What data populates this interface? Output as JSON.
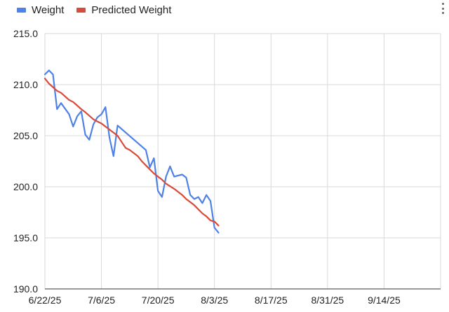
{
  "chart_data": {
    "type": "line",
    "title": "",
    "xlabel": "",
    "ylabel": "",
    "x_ticks": [
      "6/22/25",
      "7/6/25",
      "7/20/25",
      "8/3/25",
      "8/17/25",
      "8/31/25",
      "9/14/25"
    ],
    "y_ticks": [
      "190.0",
      "195.0",
      "200.0",
      "205.0",
      "210.0",
      "215.0"
    ],
    "xlim": [
      "6/22/25",
      "9/28/25"
    ],
    "ylim": [
      190,
      215
    ],
    "grid": true,
    "legend_position": "top-left",
    "series": [
      {
        "name": "Weight",
        "color": "#4f82e6",
        "points": [
          [
            "6/22/25",
            211.0
          ],
          [
            "6/23/25",
            211.4
          ],
          [
            "6/24/25",
            211.0
          ],
          [
            "6/25/25",
            207.6
          ],
          [
            "6/26/25",
            208.2
          ],
          [
            "6/28/25",
            207.1
          ],
          [
            "6/29/25",
            205.9
          ],
          [
            "6/30/25",
            206.9
          ],
          [
            "7/1/25",
            207.4
          ],
          [
            "7/2/25",
            205.1
          ],
          [
            "7/3/25",
            204.6
          ],
          [
            "7/4/25",
            206.1
          ],
          [
            "7/5/25",
            206.8
          ],
          [
            "7/6/25",
            207.1
          ],
          [
            "7/7/25",
            207.8
          ],
          [
            "7/8/25",
            204.8
          ],
          [
            "7/9/25",
            203.0
          ],
          [
            "7/10/25",
            206.0
          ],
          [
            "7/17/25",
            203.6
          ],
          [
            "7/18/25",
            201.9
          ],
          [
            "7/19/25",
            202.8
          ],
          [
            "7/20/25",
            199.6
          ],
          [
            "7/21/25",
            199.0
          ],
          [
            "7/22/25",
            201.0
          ],
          [
            "7/23/25",
            202.0
          ],
          [
            "7/24/25",
            201.0
          ],
          [
            "7/26/25",
            201.2
          ],
          [
            "7/27/25",
            200.9
          ],
          [
            "7/28/25",
            199.2
          ],
          [
            "7/29/25",
            198.8
          ],
          [
            "7/30/25",
            199.0
          ],
          [
            "7/31/25",
            198.4
          ],
          [
            "8/1/25",
            199.2
          ],
          [
            "8/2/25",
            198.6
          ],
          [
            "8/3/25",
            196.0
          ],
          [
            "8/4/25",
            195.5
          ]
        ]
      },
      {
        "name": "Predicted Weight",
        "color": "#d84a3a",
        "points": [
          [
            "6/22/25",
            210.6
          ],
          [
            "6/23/25",
            210.1
          ],
          [
            "6/25/25",
            209.4
          ],
          [
            "6/26/25",
            209.2
          ],
          [
            "6/28/25",
            208.5
          ],
          [
            "6/29/25",
            208.3
          ],
          [
            "7/1/25",
            207.6
          ],
          [
            "7/2/25",
            207.3
          ],
          [
            "7/4/25",
            206.6
          ],
          [
            "7/5/25",
            206.4
          ],
          [
            "7/6/25",
            206.2
          ],
          [
            "7/7/25",
            205.9
          ],
          [
            "7/8/25",
            205.6
          ],
          [
            "7/10/25",
            205.0
          ],
          [
            "7/11/25",
            204.4
          ],
          [
            "7/12/25",
            203.8
          ],
          [
            "7/13/25",
            203.6
          ],
          [
            "7/14/25",
            203.3
          ],
          [
            "7/15/25",
            203.0
          ],
          [
            "7/16/25",
            202.5
          ],
          [
            "7/18/25",
            201.7
          ],
          [
            "7/19/25",
            201.3
          ],
          [
            "7/21/25",
            200.7
          ],
          [
            "7/22/25",
            200.3
          ],
          [
            "7/24/25",
            199.8
          ],
          [
            "7/25/25",
            199.5
          ],
          [
            "7/26/25",
            199.2
          ],
          [
            "7/27/25",
            198.8
          ],
          [
            "7/28/25",
            198.5
          ],
          [
            "7/29/25",
            198.2
          ],
          [
            "7/31/25",
            197.4
          ],
          [
            "8/1/25",
            197.1
          ],
          [
            "8/2/25",
            196.7
          ],
          [
            "8/3/25",
            196.6
          ],
          [
            "8/4/25",
            196.2
          ]
        ]
      }
    ]
  }
}
